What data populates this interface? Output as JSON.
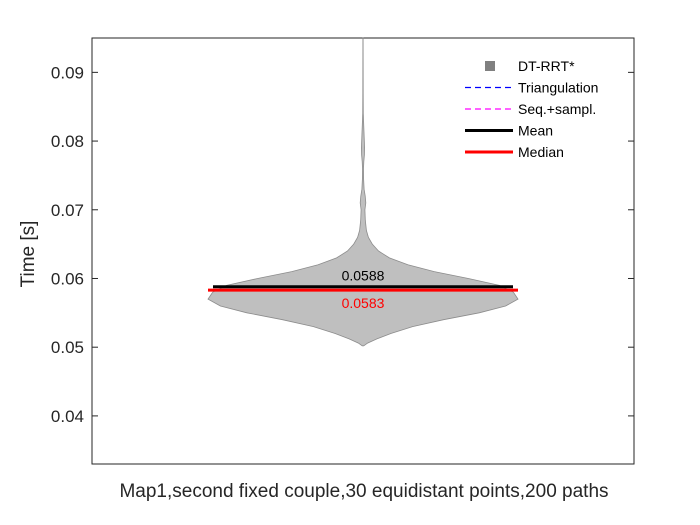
{
  "chart_data": {
    "type": "violin",
    "xlabel": "Map1,second fixed couple,30 equidistant points,200 paths",
    "ylabel": "Time [s]",
    "ylim": [
      0.033,
      0.095
    ],
    "yticks": [
      0.04,
      0.05,
      0.06,
      0.07,
      0.08,
      0.09
    ],
    "ytick_labels": [
      "0.04",
      "0.05",
      "0.06",
      "0.07",
      "0.08",
      "0.09"
    ],
    "grid": false,
    "legend_position": "top-right",
    "legend": [
      {
        "label": "DT-RRT*",
        "style": "square",
        "color": "#808080"
      },
      {
        "label": "Triangulation",
        "style": "dashed",
        "color": "#0000ff"
      },
      {
        "label": "Seq.+sampl.",
        "style": "dashed",
        "color": "#ff00ff"
      },
      {
        "label": "Mean",
        "style": "solid",
        "color": "#000000"
      },
      {
        "label": "Median",
        "style": "solid",
        "color": "#ff0000"
      }
    ],
    "series": [
      {
        "name": "DT-RRT*",
        "color": "#bfbfbf",
        "mean": 0.0588,
        "median": 0.0583,
        "mean_label": "0.0588",
        "median_label": "0.0583",
        "density": [
          [
            0.0502,
            0.005
          ],
          [
            0.0506,
            0.03
          ],
          [
            0.0512,
            0.09
          ],
          [
            0.052,
            0.18
          ],
          [
            0.053,
            0.32
          ],
          [
            0.054,
            0.52
          ],
          [
            0.055,
            0.75
          ],
          [
            0.056,
            0.92
          ],
          [
            0.057,
            1.0
          ],
          [
            0.058,
            0.97
          ],
          [
            0.059,
            0.88
          ],
          [
            0.06,
            0.68
          ],
          [
            0.061,
            0.46
          ],
          [
            0.062,
            0.29
          ],
          [
            0.063,
            0.17
          ],
          [
            0.064,
            0.1
          ],
          [
            0.065,
            0.06
          ],
          [
            0.066,
            0.035
          ],
          [
            0.067,
            0.022
          ],
          [
            0.0685,
            0.015
          ],
          [
            0.07,
            0.012
          ],
          [
            0.071,
            0.018
          ],
          [
            0.072,
            0.014
          ],
          [
            0.073,
            0.007
          ],
          [
            0.0745,
            0.004
          ],
          [
            0.076,
            0.003
          ],
          [
            0.077,
            0.005
          ],
          [
            0.078,
            0.009
          ],
          [
            0.079,
            0.01
          ],
          [
            0.0805,
            0.008
          ],
          [
            0.082,
            0.005
          ],
          [
            0.084,
            0.002
          ],
          [
            0.087,
            0.001
          ],
          [
            0.095,
            0.0005
          ]
        ]
      }
    ]
  }
}
